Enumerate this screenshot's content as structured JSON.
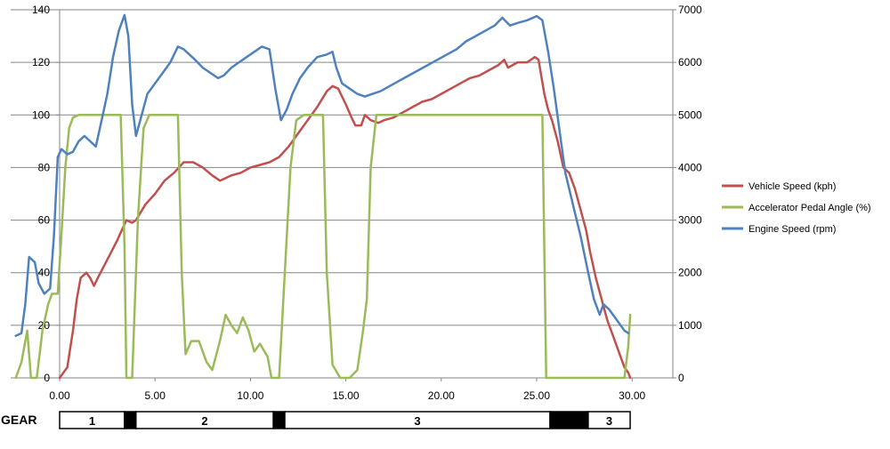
{
  "chart_data": {
    "type": "line",
    "title": "",
    "xlabel": "",
    "ylabel": "",
    "y2label": "",
    "xlim": [
      -2.5,
      31
    ],
    "ylim": [
      0,
      140
    ],
    "y2lim": [
      0,
      7000
    ],
    "x_ticks": [
      0,
      5,
      10,
      15,
      20,
      25,
      30
    ],
    "x_tick_labels": [
      "0.00",
      "5.00",
      "10.00",
      "15.00",
      "20.00",
      "25.00",
      "30.00"
    ],
    "y_ticks": [
      0,
      20,
      40,
      60,
      80,
      100,
      120,
      140
    ],
    "y2_ticks": [
      0,
      1000,
      2000,
      3000,
      4000,
      5000,
      6000,
      7000
    ],
    "grid": "horizontal",
    "legend_position": "right",
    "series": [
      {
        "name": "Vehicle Speed (kph)",
        "axis": "left",
        "color": "#c0504d",
        "points": [
          [
            0.0,
            0
          ],
          [
            0.4,
            4
          ],
          [
            0.7,
            18
          ],
          [
            0.9,
            30
          ],
          [
            1.1,
            38
          ],
          [
            1.4,
            40
          ],
          [
            1.6,
            38
          ],
          [
            1.8,
            35
          ],
          [
            2.0,
            38
          ],
          [
            2.5,
            45
          ],
          [
            3.0,
            52
          ],
          [
            3.5,
            60
          ],
          [
            3.8,
            59
          ],
          [
            4.0,
            60
          ],
          [
            4.5,
            66
          ],
          [
            5.0,
            70
          ],
          [
            5.5,
            75
          ],
          [
            6.0,
            78
          ],
          [
            6.5,
            82
          ],
          [
            7.0,
            82
          ],
          [
            7.5,
            80
          ],
          [
            8.0,
            77
          ],
          [
            8.4,
            75
          ],
          [
            9.0,
            77
          ],
          [
            9.5,
            78
          ],
          [
            10.0,
            80
          ],
          [
            10.5,
            81
          ],
          [
            11.0,
            82
          ],
          [
            11.5,
            84
          ],
          [
            12.0,
            88
          ],
          [
            12.5,
            93
          ],
          [
            13.0,
            98
          ],
          [
            13.5,
            103
          ],
          [
            14.0,
            109
          ],
          [
            14.3,
            111
          ],
          [
            14.6,
            110
          ],
          [
            15.0,
            104
          ],
          [
            15.3,
            99
          ],
          [
            15.5,
            96
          ],
          [
            15.8,
            96
          ],
          [
            16.0,
            100
          ],
          [
            16.3,
            98
          ],
          [
            16.7,
            97
          ],
          [
            17.0,
            98
          ],
          [
            17.5,
            99
          ],
          [
            18.0,
            101
          ],
          [
            18.5,
            103
          ],
          [
            19.0,
            105
          ],
          [
            19.5,
            106
          ],
          [
            20.0,
            108
          ],
          [
            20.5,
            110
          ],
          [
            21.0,
            112
          ],
          [
            21.5,
            114
          ],
          [
            22.0,
            115
          ],
          [
            22.5,
            117
          ],
          [
            23.0,
            119
          ],
          [
            23.3,
            121
          ],
          [
            23.5,
            118
          ],
          [
            24.0,
            120
          ],
          [
            24.5,
            120
          ],
          [
            24.9,
            122
          ],
          [
            25.1,
            121
          ],
          [
            25.4,
            108
          ],
          [
            25.6,
            102
          ],
          [
            25.8,
            98
          ],
          [
            26.1,
            90
          ],
          [
            26.4,
            80
          ],
          [
            26.7,
            78
          ],
          [
            27.0,
            72
          ],
          [
            27.3,
            64
          ],
          [
            27.6,
            56
          ],
          [
            27.8,
            48
          ],
          [
            28.1,
            38
          ],
          [
            28.4,
            30
          ],
          [
            28.7,
            22
          ],
          [
            29.0,
            16
          ],
          [
            29.3,
            10
          ],
          [
            29.6,
            4
          ],
          [
            29.8,
            2
          ],
          [
            29.9,
            0
          ]
        ]
      },
      {
        "name": "Accelerator Pedal Angle (%)",
        "axis": "left",
        "color": "#9bbb59",
        "points": [
          [
            -2.3,
            0
          ],
          [
            -2.0,
            6
          ],
          [
            -1.7,
            18
          ],
          [
            -1.5,
            0
          ],
          [
            -1.2,
            0
          ],
          [
            -0.9,
            18
          ],
          [
            -0.6,
            28
          ],
          [
            -0.4,
            32
          ],
          [
            -0.1,
            32
          ],
          [
            0.1,
            55
          ],
          [
            0.3,
            80
          ],
          [
            0.5,
            95
          ],
          [
            0.7,
            99
          ],
          [
            1.0,
            100
          ],
          [
            2.0,
            100
          ],
          [
            3.0,
            100
          ],
          [
            3.2,
            100
          ],
          [
            3.4,
            50
          ],
          [
            3.5,
            0
          ],
          [
            3.8,
            0
          ],
          [
            4.1,
            60
          ],
          [
            4.4,
            95
          ],
          [
            4.7,
            100
          ],
          [
            5.5,
            100
          ],
          [
            6.2,
            100
          ],
          [
            6.4,
            40
          ],
          [
            6.6,
            9
          ],
          [
            6.9,
            14
          ],
          [
            7.3,
            14
          ],
          [
            7.7,
            6
          ],
          [
            8.0,
            3
          ],
          [
            8.4,
            14
          ],
          [
            8.7,
            24
          ],
          [
            9.0,
            20
          ],
          [
            9.3,
            17
          ],
          [
            9.6,
            23
          ],
          [
            9.9,
            18
          ],
          [
            10.2,
            10
          ],
          [
            10.5,
            13
          ],
          [
            10.9,
            8
          ],
          [
            11.1,
            0
          ],
          [
            11.5,
            0
          ],
          [
            11.8,
            40
          ],
          [
            12.1,
            80
          ],
          [
            12.4,
            98
          ],
          [
            12.8,
            100
          ],
          [
            13.5,
            100
          ],
          [
            13.8,
            100
          ],
          [
            14.0,
            40
          ],
          [
            14.3,
            5
          ],
          [
            14.7,
            0
          ],
          [
            15.2,
            0
          ],
          [
            15.6,
            3
          ],
          [
            15.9,
            18
          ],
          [
            16.1,
            30
          ],
          [
            16.3,
            80
          ],
          [
            16.6,
            100
          ],
          [
            17.5,
            100
          ],
          [
            19.0,
            100
          ],
          [
            21.0,
            100
          ],
          [
            23.0,
            100
          ],
          [
            25.0,
            100
          ],
          [
            25.3,
            100
          ],
          [
            25.5,
            0
          ],
          [
            26.0,
            0
          ],
          [
            27.0,
            0
          ],
          [
            28.0,
            0
          ],
          [
            29.0,
            0
          ],
          [
            29.6,
            0
          ],
          [
            29.8,
            12
          ],
          [
            29.9,
            24
          ]
        ]
      },
      {
        "name": "Engine Speed (rpm)",
        "axis": "right",
        "color": "#4f81bd",
        "points": [
          [
            -2.3,
            800
          ],
          [
            -2.0,
            850
          ],
          [
            -1.8,
            1400
          ],
          [
            -1.6,
            2300
          ],
          [
            -1.3,
            2200
          ],
          [
            -1.1,
            1800
          ],
          [
            -0.8,
            1600
          ],
          [
            -0.5,
            1700
          ],
          [
            -0.3,
            2700
          ],
          [
            -0.1,
            4200
          ],
          [
            0.1,
            4350
          ],
          [
            0.4,
            4250
          ],
          [
            0.7,
            4300
          ],
          [
            1.0,
            4500
          ],
          [
            1.3,
            4600
          ],
          [
            1.6,
            4500
          ],
          [
            1.9,
            4400
          ],
          [
            2.2,
            4900
          ],
          [
            2.5,
            5400
          ],
          [
            2.8,
            6100
          ],
          [
            3.1,
            6600
          ],
          [
            3.4,
            6900
          ],
          [
            3.6,
            6500
          ],
          [
            3.8,
            5200
          ],
          [
            4.0,
            4600
          ],
          [
            4.3,
            5000
          ],
          [
            4.6,
            5400
          ],
          [
            5.0,
            5600
          ],
          [
            5.4,
            5800
          ],
          [
            5.8,
            6000
          ],
          [
            6.2,
            6300
          ],
          [
            6.5,
            6250
          ],
          [
            6.8,
            6150
          ],
          [
            7.1,
            6050
          ],
          [
            7.5,
            5900
          ],
          [
            7.9,
            5800
          ],
          [
            8.3,
            5700
          ],
          [
            8.6,
            5750
          ],
          [
            9.0,
            5900
          ],
          [
            9.4,
            6000
          ],
          [
            9.8,
            6100
          ],
          [
            10.2,
            6200
          ],
          [
            10.6,
            6300
          ],
          [
            11.0,
            6250
          ],
          [
            11.3,
            5500
          ],
          [
            11.6,
            4900
          ],
          [
            11.9,
            5100
          ],
          [
            12.2,
            5400
          ],
          [
            12.6,
            5700
          ],
          [
            13.0,
            5900
          ],
          [
            13.5,
            6100
          ],
          [
            14.0,
            6150
          ],
          [
            14.3,
            6200
          ],
          [
            14.5,
            5900
          ],
          [
            14.8,
            5600
          ],
          [
            15.2,
            5500
          ],
          [
            15.6,
            5400
          ],
          [
            16.0,
            5350
          ],
          [
            16.4,
            5400
          ],
          [
            16.8,
            5450
          ],
          [
            17.3,
            5550
          ],
          [
            17.8,
            5650
          ],
          [
            18.3,
            5750
          ],
          [
            18.8,
            5850
          ],
          [
            19.3,
            5950
          ],
          [
            19.8,
            6050
          ],
          [
            20.3,
            6150
          ],
          [
            20.8,
            6250
          ],
          [
            21.3,
            6400
          ],
          [
            21.8,
            6500
          ],
          [
            22.3,
            6600
          ],
          [
            22.8,
            6700
          ],
          [
            23.2,
            6850
          ],
          [
            23.6,
            6700
          ],
          [
            24.0,
            6750
          ],
          [
            24.5,
            6800
          ],
          [
            25.0,
            6880
          ],
          [
            25.3,
            6800
          ],
          [
            25.6,
            6200
          ],
          [
            25.9,
            5500
          ],
          [
            26.2,
            4700
          ],
          [
            26.5,
            3900
          ],
          [
            26.9,
            3300
          ],
          [
            27.3,
            2700
          ],
          [
            27.7,
            2000
          ],
          [
            28.0,
            1500
          ],
          [
            28.3,
            1200
          ],
          [
            28.5,
            1400
          ],
          [
            28.8,
            1300
          ],
          [
            29.2,
            1100
          ],
          [
            29.6,
            900
          ],
          [
            29.8,
            850
          ]
        ]
      }
    ],
    "gear": {
      "label": "GEAR",
      "segments": [
        {
          "start": 0.0,
          "end": 3.4,
          "label": "1",
          "shift": false
        },
        {
          "start": 3.4,
          "end": 4.0,
          "label": "",
          "shift": true
        },
        {
          "start": 4.0,
          "end": 11.2,
          "label": "2",
          "shift": false
        },
        {
          "start": 11.2,
          "end": 11.8,
          "label": "",
          "shift": true
        },
        {
          "start": 11.8,
          "end": 25.7,
          "label": "3",
          "shift": false
        },
        {
          "start": 25.7,
          "end": 27.7,
          "label": "",
          "shift": true
        },
        {
          "start": 27.7,
          "end": 29.9,
          "label": "3",
          "shift": false
        }
      ]
    }
  }
}
